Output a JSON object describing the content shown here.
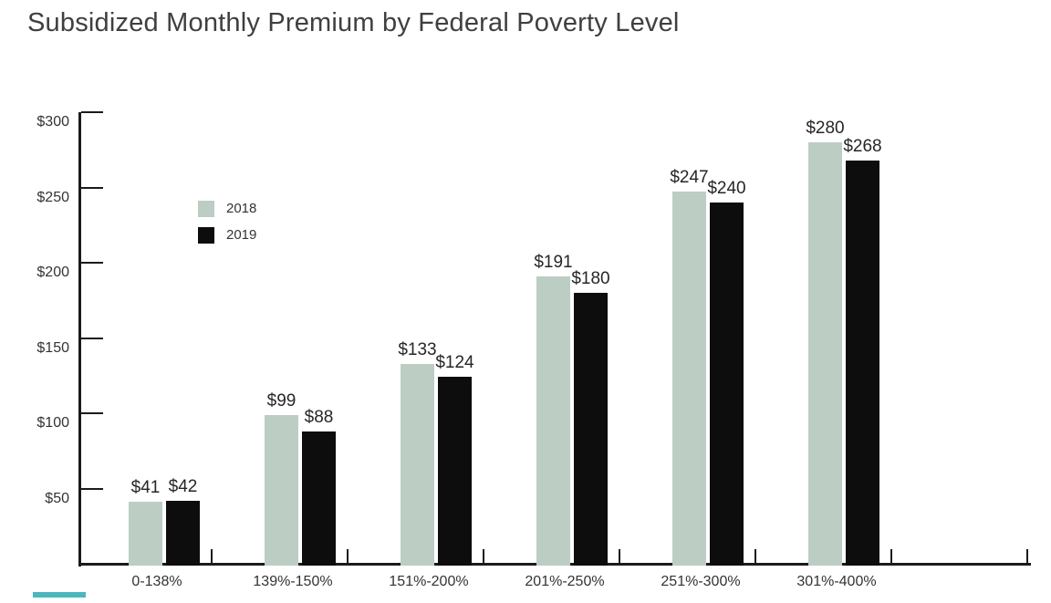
{
  "chart_data": {
    "type": "bar",
    "title": "Subsidized Monthly Premium by Federal Poverty Level",
    "categories": [
      "0-138%",
      "139%-150%",
      "151%-200%",
      "201%-250%",
      "251%-300%",
      "301%-400%"
    ],
    "series": [
      {
        "name": "2018",
        "color": "#bccdc3",
        "values": [
          41,
          99,
          133,
          191,
          247,
          280
        ]
      },
      {
        "name": "2019",
        "color": "#0d0d0d",
        "values": [
          42,
          88,
          124,
          180,
          240,
          268
        ]
      }
    ],
    "value_prefix": "$",
    "y_axis": {
      "range": [
        0,
        300
      ],
      "ticks": [
        {
          "value": 300,
          "label": "$300"
        },
        {
          "value": 250,
          "label": "$250"
        },
        {
          "value": 200,
          "label": "$200"
        },
        {
          "value": 150,
          "label": "$150"
        },
        {
          "value": 100,
          "label": "$100"
        },
        {
          "value": 50,
          "label": "$50"
        }
      ]
    },
    "legend_position": "inside-upper-left",
    "grid": false,
    "axis_color": "#1b1b1b",
    "text_color": "#333333",
    "title_color": "#3f3f3f"
  },
  "decorations": {
    "bottom_accent_color": "#4db7bc"
  }
}
